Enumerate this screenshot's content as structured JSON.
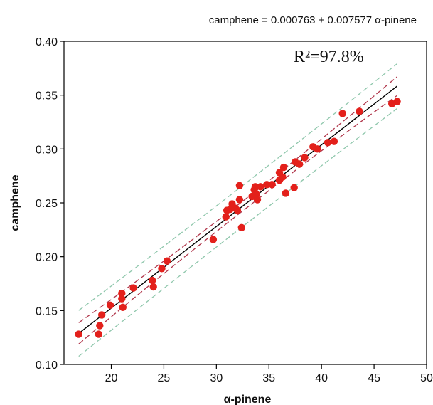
{
  "chart_data": {
    "type": "scatter",
    "title": "",
    "equation": "camphene =  0.000763 + 0.007577 α-pinene",
    "r2_label": "R²=97.8%",
    "xlabel": "α-pinene",
    "ylabel": "camphene",
    "xlim": [
      15.5,
      50
    ],
    "ylim": [
      0.1,
      0.4
    ],
    "xticks": [
      20,
      25,
      30,
      35,
      40,
      45,
      50
    ],
    "yticks": [
      "0.10",
      "0.15",
      "0.20",
      "0.25",
      "0.30",
      "0.35",
      "0.40"
    ],
    "grid": false,
    "regression": {
      "intercept": 0.000763,
      "slope": 0.007577
    },
    "ci_half_width": 0.0045,
    "pi_half_width": 0.019,
    "colors": {
      "points": "#e3201b",
      "fit": "#000000",
      "ci": "#b0354a",
      "pi": "#8fc7ac"
    },
    "points": [
      [
        16.9,
        0.128
      ],
      [
        18.8,
        0.128
      ],
      [
        18.9,
        0.136
      ],
      [
        19.1,
        0.146
      ],
      [
        19.9,
        0.155
      ],
      [
        21.0,
        0.166
      ],
      [
        21.0,
        0.161
      ],
      [
        21.1,
        0.153
      ],
      [
        22.1,
        0.171
      ],
      [
        23.9,
        0.178
      ],
      [
        24.0,
        0.172
      ],
      [
        24.8,
        0.189
      ],
      [
        25.3,
        0.196
      ],
      [
        29.7,
        0.216
      ],
      [
        30.9,
        0.237
      ],
      [
        31.0,
        0.243
      ],
      [
        31.3,
        0.244
      ],
      [
        31.5,
        0.249
      ],
      [
        31.8,
        0.245
      ],
      [
        32.0,
        0.243
      ],
      [
        32.2,
        0.253
      ],
      [
        32.2,
        0.266
      ],
      [
        32.4,
        0.227
      ],
      [
        33.4,
        0.256
      ],
      [
        33.6,
        0.262
      ],
      [
        33.7,
        0.265
      ],
      [
        33.8,
        0.258
      ],
      [
        33.9,
        0.253
      ],
      [
        34.2,
        0.265
      ],
      [
        34.8,
        0.267
      ],
      [
        35.3,
        0.267
      ],
      [
        36.0,
        0.271
      ],
      [
        36.0,
        0.278
      ],
      [
        36.3,
        0.274
      ],
      [
        36.4,
        0.283
      ],
      [
        36.6,
        0.259
      ],
      [
        37.4,
        0.264
      ],
      [
        37.5,
        0.288
      ],
      [
        37.9,
        0.286
      ],
      [
        38.4,
        0.292
      ],
      [
        39.2,
        0.302
      ],
      [
        39.6,
        0.3
      ],
      [
        40.6,
        0.306
      ],
      [
        41.2,
        0.307
      ],
      [
        42.0,
        0.333
      ],
      [
        43.6,
        0.335
      ],
      [
        46.7,
        0.342
      ],
      [
        47.2,
        0.344
      ]
    ]
  }
}
